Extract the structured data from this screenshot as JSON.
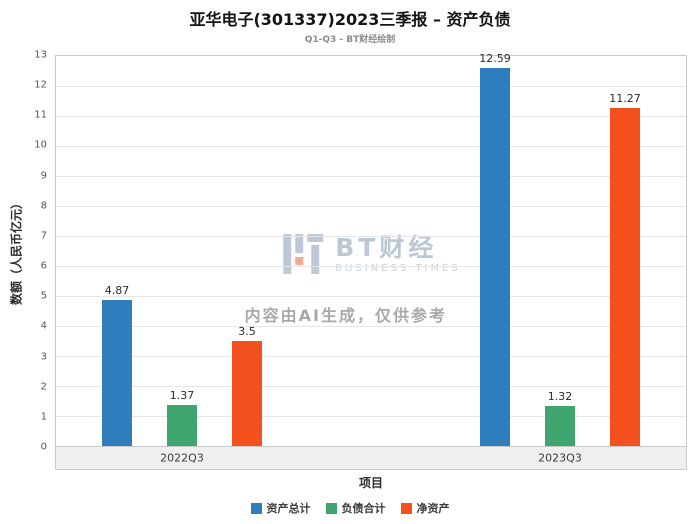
{
  "chart_data": {
    "type": "bar",
    "title": "亚华电子(301337)2023三季报 – 资产负债",
    "subtitle": "Q1-Q3 - BT财经绘制",
    "xlabel": "项目",
    "ylabel": "数额（人民币亿元）",
    "categories": [
      "2022Q3",
      "2023Q3"
    ],
    "series": [
      {
        "name": "资产总计",
        "color": "#2E7DBC",
        "values": [
          4.87,
          12.59
        ]
      },
      {
        "name": "负债合计",
        "color": "#3FA56E",
        "values": [
          1.37,
          1.32
        ]
      },
      {
        "name": "净资产",
        "color": "#F4511E",
        "values": [
          3.5,
          11.27
        ]
      }
    ],
    "ylim": [
      0,
      13
    ],
    "yticks": [
      0,
      1,
      2,
      3,
      4,
      5,
      6,
      7,
      8,
      9,
      10,
      11,
      12,
      13
    ],
    "grid": true,
    "legend_position": "bottom",
    "group_center_fractions": [
      0.2,
      0.8
    ]
  },
  "watermark": {
    "logo_text": "BT财经",
    "logo_subtext": "BUSINESS TIMES",
    "disclaimer": "内容由AI生成，仅供参考"
  }
}
